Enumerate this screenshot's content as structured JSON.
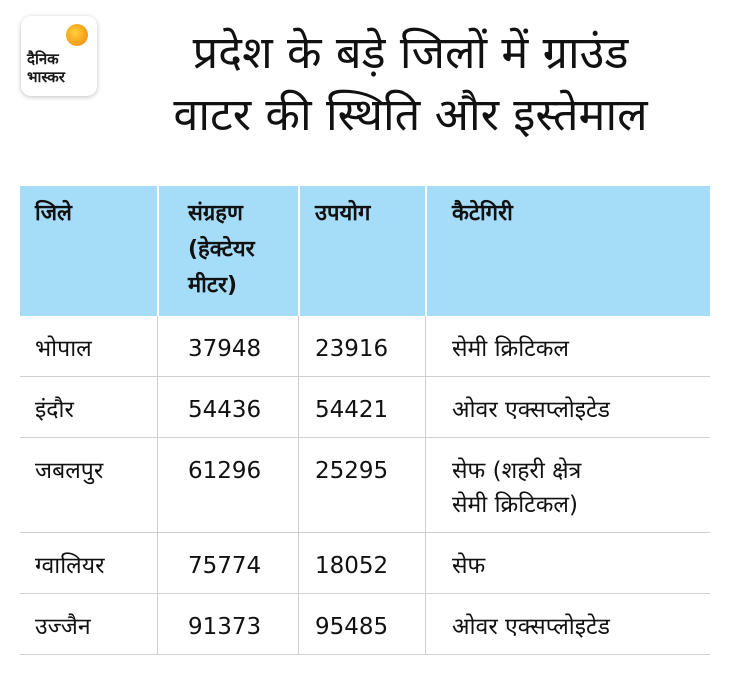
{
  "logo": {
    "line1": "दैनिक",
    "line2": "भास्कर"
  },
  "title": {
    "line1": "प्रदेश के बड़े जिलों में ग्राउंड",
    "line2": "वाटर की स्थिति और इस्तेमाल"
  },
  "table": {
    "headers": [
      "जिले",
      "संग्रहण\n(हेक्टेयर\nमीटर)",
      "उपयोग",
      "कैटेगिरी"
    ],
    "rows": [
      [
        "भोपाल",
        "37948",
        "23916",
        "सेमी क्रिटिकल"
      ],
      [
        "इंदौर",
        "54436",
        "54421",
        "ओवर एक्सप्लोइटेड"
      ],
      [
        "जबलपुर",
        "61296",
        "25295",
        "सेफ (शहरी क्षेत्र\nसेमी क्रिटिकल)"
      ],
      [
        "ग्वालियर",
        "75774",
        "18052",
        "सेफ"
      ],
      [
        "उज्जैन",
        "91373",
        "95485",
        "ओवर एक्सप्लोइटेड"
      ]
    ]
  },
  "colors": {
    "header_bg": "#a5dcf7",
    "brand_sun": "#f7a51c"
  }
}
